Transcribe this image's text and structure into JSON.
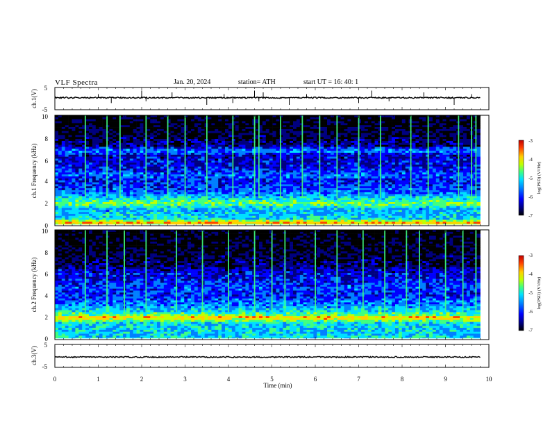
{
  "header": {
    "title": "VLF  Spectra",
    "date": "Jan. 20, 2024",
    "station": "station= ATH",
    "start": "start  UT  =   16: 40: 1"
  },
  "colorbar_label": "log(PSD) (V²/Hz)",
  "colors": {
    "jet": [
      "#000000",
      "#00007f",
      "#0000ff",
      "#0080ff",
      "#00e0ff",
      "#40ff80",
      "#c0ff00",
      "#ffd000",
      "#ff4000",
      "#c00000"
    ]
  },
  "chart_data": [
    {
      "id": "ch1-waveform",
      "type": "line",
      "ylabel": "ch.1(V)",
      "yticks": [
        "5",
        "-5"
      ],
      "ylim": [
        -5,
        5
      ],
      "xlim": [
        0,
        10
      ],
      "data_end_min": 9.8,
      "baseline_v": 0.4,
      "noise_amplitude_v": 0.3,
      "spikes_min": [
        1.0,
        1.3,
        2.0,
        2.1,
        2.7,
        3.5,
        3.9,
        4.1,
        4.6,
        4.7,
        4.8,
        5.4,
        5.8,
        7.0,
        7.3,
        7.7,
        8.5,
        9.2,
        9.6
      ]
    },
    {
      "id": "ch1-spectrogram",
      "type": "heatmap",
      "ylabel": "ch.1 Frequency  (kHz)",
      "yticks": [
        "10",
        "8",
        "6",
        "4",
        "2",
        "0"
      ],
      "ylim": [
        0,
        10
      ],
      "xlim": [
        0,
        10
      ],
      "data_end_min": 9.8,
      "colorbar": {
        "ticks": [
          "-3",
          "-4",
          "-5",
          "-6",
          "-7"
        ],
        "range": [
          -7,
          -3
        ]
      },
      "band_profile_khz_to_log_psd": [
        [
          0,
          -4.5
        ],
        [
          0.3,
          -3.8
        ],
        [
          0.6,
          -5.2
        ],
        [
          1.5,
          -5.4
        ],
        [
          2.0,
          -4.6
        ],
        [
          2.3,
          -5.0
        ],
        [
          3.0,
          -5.7
        ],
        [
          4.0,
          -6.0
        ],
        [
          4.6,
          -5.7
        ],
        [
          5.2,
          -6.1
        ],
        [
          6.4,
          -6.2
        ],
        [
          6.8,
          -5.5
        ],
        [
          7.2,
          -6.4
        ],
        [
          8.0,
          -6.6
        ],
        [
          10.0,
          -6.9
        ]
      ],
      "sferic_times_min": [
        0.7,
        1.2,
        1.5,
        2.1,
        2.6,
        3.0,
        3.5,
        4.1,
        4.6,
        4.7,
        5.2,
        5.7,
        6.1,
        6.5,
        7.0,
        7.5,
        8.2,
        8.6,
        9.3,
        9.6,
        9.7
      ]
    },
    {
      "id": "ch2-spectrogram",
      "type": "heatmap",
      "ylabel": "ch.2 Frequency  (kHz)",
      "yticks": [
        "10",
        "8",
        "6",
        "4",
        "2",
        "0"
      ],
      "ylim": [
        0,
        10
      ],
      "xlim": [
        0,
        10
      ],
      "data_end_min": 9.8,
      "colorbar": {
        "ticks": [
          "-3",
          "-4",
          "-5",
          "-6",
          "-7"
        ],
        "range": [
          -7,
          -3
        ]
      },
      "band_profile_khz_to_log_psd": [
        [
          0,
          -5.0
        ],
        [
          0.5,
          -5.3
        ],
        [
          1.5,
          -5.2
        ],
        [
          2.0,
          -3.9
        ],
        [
          2.2,
          -4.6
        ],
        [
          2.6,
          -5.2
        ],
        [
          3.2,
          -5.6
        ],
        [
          4.0,
          -5.9
        ],
        [
          4.8,
          -5.8
        ],
        [
          5.6,
          -6.1
        ],
        [
          6.3,
          -6.2
        ],
        [
          6.7,
          -6.5
        ],
        [
          8.0,
          -6.7
        ],
        [
          10.0,
          -6.9
        ]
      ],
      "sferic_times_min": [
        0.7,
        1.2,
        1.6,
        2.1,
        2.8,
        3.4,
        4.0,
        4.6,
        5.0,
        5.3,
        6.0,
        6.5,
        7.1,
        7.6,
        8.1,
        8.4,
        9.0,
        9.4,
        9.7
      ]
    },
    {
      "id": "ch3-waveform",
      "type": "line",
      "ylabel": "ch.3(V)",
      "yticks": [
        "5",
        "-5"
      ],
      "ylim": [
        -5,
        5
      ],
      "xlim": [
        0,
        10
      ],
      "data_end_min": 9.8,
      "baseline_v": -0.5,
      "noise_amplitude_v": 0.25,
      "spikes_min": []
    },
    {
      "id": "time-axis",
      "type": "line",
      "xlabel": "Time  (min)",
      "xticks": [
        "0",
        "1",
        "2",
        "3",
        "4",
        "5",
        "6",
        "7",
        "8",
        "9",
        "10"
      ]
    }
  ]
}
